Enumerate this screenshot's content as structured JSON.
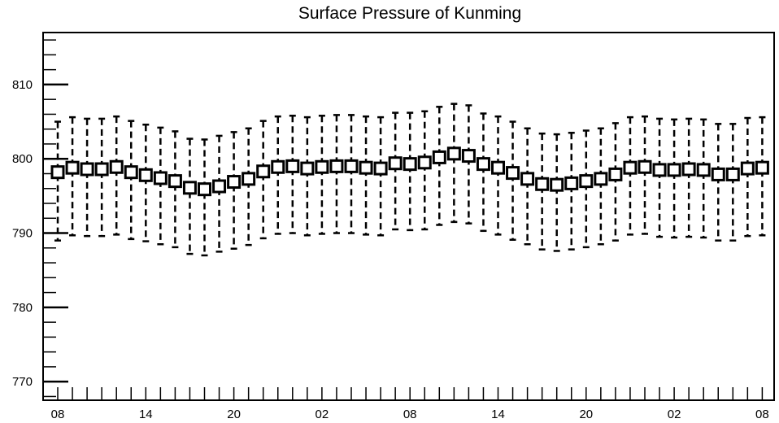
{
  "chart_data": {
    "type": "box",
    "title": "Surface Pressure of Kunming",
    "xlabel": "",
    "ylabel": "",
    "ylim": [
      767.5,
      817
    ],
    "y_ticks": [
      770,
      780,
      790,
      800,
      810
    ],
    "x_tick_labels": [
      "08",
      "14",
      "20",
      "02",
      "08",
      "14",
      "20",
      "02",
      "08"
    ],
    "x_tick_label_indices": [
      0,
      6,
      12,
      18,
      24,
      30,
      36,
      42,
      48
    ],
    "x": [
      "08",
      "09",
      "10",
      "11",
      "12",
      "13",
      "14",
      "15",
      "16",
      "17",
      "18",
      "19",
      "20",
      "21",
      "22",
      "23",
      "00",
      "01",
      "02",
      "03",
      "04",
      "05",
      "06",
      "07",
      "08",
      "09",
      "10",
      "11",
      "12",
      "13",
      "14",
      "15",
      "16",
      "17",
      "18",
      "19",
      "20",
      "21",
      "22",
      "23",
      "00",
      "01",
      "02",
      "03",
      "04",
      "05",
      "06",
      "07",
      "08"
    ],
    "median": [
      798.2,
      798.8,
      798.6,
      798.6,
      798.9,
      798.2,
      797.8,
      797.4,
      797.0,
      796.1,
      795.9,
      796.3,
      796.9,
      797.3,
      798.3,
      798.9,
      799.0,
      798.7,
      798.9,
      799.0,
      799.0,
      798.8,
      798.7,
      799.4,
      799.3,
      799.5,
      800.2,
      800.7,
      800.4,
      799.3,
      798.8,
      798.1,
      797.3,
      796.6,
      796.5,
      796.7,
      797.0,
      797.3,
      797.9,
      798.8,
      798.9,
      798.5,
      798.5,
      798.6,
      798.5,
      797.9,
      797.9,
      798.7,
      798.8
    ],
    "whisker_low": [
      789.0,
      789.7,
      789.6,
      789.6,
      789.8,
      789.2,
      788.9,
      788.5,
      788.1,
      787.2,
      787.0,
      787.5,
      787.9,
      788.4,
      789.3,
      789.9,
      790.0,
      789.7,
      789.9,
      790.0,
      790.0,
      789.8,
      789.7,
      790.5,
      790.4,
      790.5,
      791.1,
      791.5,
      791.3,
      790.3,
      789.8,
      789.1,
      788.5,
      787.8,
      787.6,
      787.8,
      788.1,
      788.5,
      789.0,
      789.8,
      789.9,
      789.5,
      789.4,
      789.5,
      789.4,
      789.0,
      789.0,
      789.6,
      789.7
    ],
    "whisker_high": [
      805.0,
      805.6,
      805.4,
      805.4,
      805.7,
      805.1,
      804.6,
      804.2,
      803.7,
      802.7,
      802.6,
      803.1,
      803.6,
      804.1,
      805.1,
      805.7,
      805.8,
      805.6,
      805.8,
      805.9,
      805.9,
      805.7,
      805.6,
      806.2,
      806.2,
      806.4,
      807.0,
      807.4,
      807.2,
      806.1,
      805.7,
      805.0,
      804.1,
      803.4,
      803.3,
      803.5,
      803.8,
      804.1,
      804.8,
      805.6,
      805.7,
      805.4,
      805.3,
      805.4,
      805.3,
      804.7,
      804.7,
      805.5,
      805.6
    ],
    "grid": false,
    "legend": "none",
    "box_color": "#000000",
    "background": "#ffffff"
  }
}
